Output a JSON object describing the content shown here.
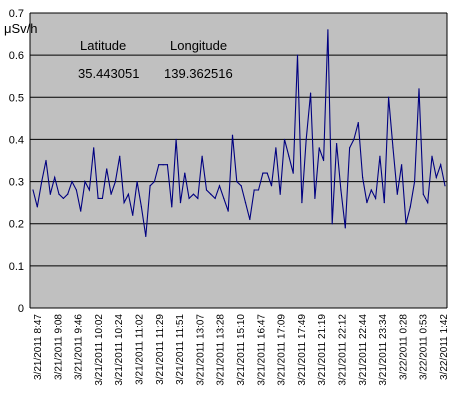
{
  "chart_data": {
    "type": "line",
    "ylabel": "μSv/h",
    "ylim": [
      0,
      0.7
    ],
    "yticks": [
      "0",
      "0.1",
      "0.2",
      "0.3",
      "0.4",
      "0.5",
      "0.6",
      "0.7"
    ],
    "grid": "horizontal",
    "legend": "none",
    "colors": {
      "line": "#000080",
      "plot_bg": "#c0c0c0",
      "grid": "#000000"
    },
    "annotations": {
      "latitude_label": "Latitude",
      "longitude_label": "Longitude",
      "latitude_value": "35.443051",
      "longitude_value": "139.362516"
    },
    "x_tick_labels": [
      "3/21/2011 8:47",
      "3/21/2011 9:08",
      "3/21/2011 9:46",
      "3/21/2011 10:02",
      "3/21/2011 10:24",
      "3/21/2011 11:02",
      "3/21/2011 11:29",
      "3/21/2011 11:51",
      "3/21/2011 13:07",
      "3/21/2011 13:28",
      "3/21/2011 15:10",
      "3/21/2011 16:47",
      "3/21/2011 17:09",
      "3/21/2011 17:49",
      "3/21/2011 21:19",
      "3/21/2011 22:12",
      "3/21/2011 22:44",
      "3/21/2011 23:34",
      "3/22/2011 0:28",
      "3/22/2011 0:53",
      "3/22/2011 1:42"
    ],
    "series": [
      {
        "values": [
          0.28,
          0.24,
          0.3,
          0.35,
          0.27,
          0.31,
          0.27,
          0.26,
          0.27,
          0.3,
          0.28,
          0.23,
          0.3,
          0.28,
          0.38,
          0.26,
          0.26,
          0.33,
          0.27,
          0.3,
          0.36,
          0.25,
          0.27,
          0.22,
          0.3,
          0.24,
          0.17,
          0.29,
          0.3,
          0.34,
          0.34,
          0.34,
          0.24,
          0.4,
          0.25,
          0.32,
          0.26,
          0.27,
          0.26,
          0.36,
          0.28,
          0.27,
          0.26,
          0.29,
          0.26,
          0.23,
          0.41,
          0.3,
          0.29,
          0.25,
          0.21,
          0.28,
          0.28,
          0.32,
          0.32,
          0.29,
          0.38,
          0.27,
          0.4,
          0.36,
          0.32,
          0.6,
          0.25,
          0.4,
          0.51,
          0.26,
          0.38,
          0.35,
          0.66,
          0.2,
          0.39,
          0.28,
          0.19,
          0.38,
          0.4,
          0.44,
          0.31,
          0.25,
          0.28,
          0.26,
          0.36,
          0.25,
          0.5,
          0.38,
          0.27,
          0.34,
          0.2,
          0.24,
          0.3,
          0.52,
          0.27,
          0.25,
          0.36,
          0.31,
          0.34,
          0.29
        ]
      }
    ]
  }
}
